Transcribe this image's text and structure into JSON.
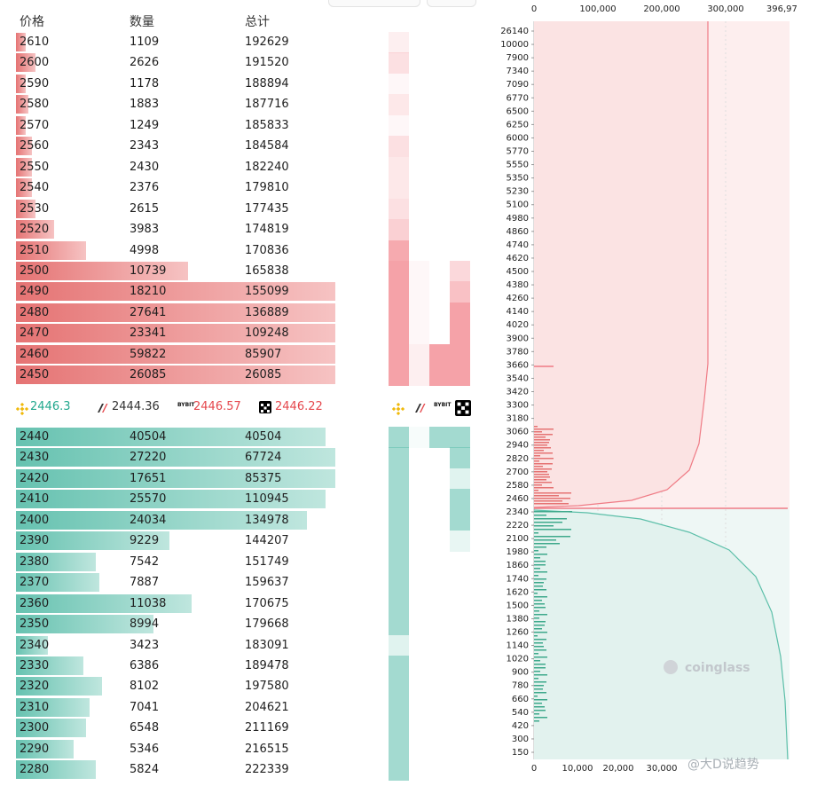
{
  "header": {
    "price": "价格",
    "qty": "数量",
    "total": "总计"
  },
  "colors": {
    "ask": "#e57373",
    "ask_light": "#f6c3c3",
    "bid": "#66c2b0",
    "bid_light": "#bfe6de",
    "ask_price_text": "#e5484d",
    "bid_price_text": "#22a88e"
  },
  "asks": [
    {
      "price": "2610",
      "qty": "1109",
      "total": "192629",
      "depth": 0.03
    },
    {
      "price": "2600",
      "qty": "2626",
      "total": "191520",
      "depth": 0.06
    },
    {
      "price": "2590",
      "qty": "1178",
      "total": "188894",
      "depth": 0.03
    },
    {
      "price": "2580",
      "qty": "1883",
      "total": "187716",
      "depth": 0.04
    },
    {
      "price": "2570",
      "qty": "1249",
      "total": "185833",
      "depth": 0.03
    },
    {
      "price": "2560",
      "qty": "2343",
      "total": "184584",
      "depth": 0.05
    },
    {
      "price": "2550",
      "qty": "2430",
      "total": "182240",
      "depth": 0.05
    },
    {
      "price": "2540",
      "qty": "2376",
      "total": "179810",
      "depth": 0.05
    },
    {
      "price": "2530",
      "qty": "2615",
      "total": "177435",
      "depth": 0.06
    },
    {
      "price": "2520",
      "qty": "3983",
      "total": "174819",
      "depth": 0.12
    },
    {
      "price": "2510",
      "qty": "4998",
      "total": "170836",
      "depth": 0.22
    },
    {
      "price": "2500",
      "qty": "10739",
      "total": "165838",
      "depth": 0.54
    },
    {
      "price": "2490",
      "qty": "18210",
      "total": "155099",
      "depth": 1.0
    },
    {
      "price": "2480",
      "qty": "27641",
      "total": "136889",
      "depth": 1.0
    },
    {
      "price": "2470",
      "qty": "23341",
      "total": "109248",
      "depth": 1.0
    },
    {
      "price": "2460",
      "qty": "59822",
      "total": "85907",
      "depth": 1.0
    },
    {
      "price": "2450",
      "qty": "26085",
      "total": "26085",
      "depth": 1.0
    }
  ],
  "bids": [
    {
      "price": "2440",
      "qty": "40504",
      "total": "40504",
      "depth": 0.97
    },
    {
      "price": "2430",
      "qty": "27220",
      "total": "67724",
      "depth": 1.0
    },
    {
      "price": "2420",
      "qty": "17651",
      "total": "85375",
      "depth": 1.0
    },
    {
      "price": "2410",
      "qty": "25570",
      "total": "110945",
      "depth": 0.97
    },
    {
      "price": "2400",
      "qty": "24034",
      "total": "134978",
      "depth": 0.91
    },
    {
      "price": "2390",
      "qty": "9229",
      "total": "144207",
      "depth": 0.48
    },
    {
      "price": "2380",
      "qty": "7542",
      "total": "151749",
      "depth": 0.25
    },
    {
      "price": "2370",
      "qty": "7887",
      "total": "159637",
      "depth": 0.26
    },
    {
      "price": "2360",
      "qty": "11038",
      "total": "170675",
      "depth": 0.55
    },
    {
      "price": "2350",
      "qty": "8994",
      "total": "179668",
      "depth": 0.43
    },
    {
      "price": "2340",
      "qty": "3423",
      "total": "183091",
      "depth": 0.1
    },
    {
      "price": "2330",
      "qty": "6386",
      "total": "189478",
      "depth": 0.21
    },
    {
      "price": "2320",
      "qty": "8102",
      "total": "197580",
      "depth": 0.27
    },
    {
      "price": "2310",
      "qty": "7041",
      "total": "204621",
      "depth": 0.23
    },
    {
      "price": "2300",
      "qty": "6548",
      "total": "211169",
      "depth": 0.22
    },
    {
      "price": "2290",
      "qty": "5346",
      "total": "216515",
      "depth": 0.18
    },
    {
      "price": "2280",
      "qty": "5824",
      "total": "222339",
      "depth": 0.25
    }
  ],
  "exchange_prices": [
    {
      "name": "binance-icon",
      "price": "2446.3",
      "color": "#22a88e"
    },
    {
      "name": "bybit-stripe-icon",
      "price": "2444.36",
      "color": "#333333"
    },
    {
      "name": "bybit-icon",
      "price": "2446.57",
      "color": "#e5484d"
    },
    {
      "name": "okx-icon",
      "price": "2446.22",
      "color": "#e5484d"
    }
  ],
  "exchange_logo_text": {
    "bybit": "BYBIT"
  },
  "depth_chart": {
    "top_axis": [
      "0",
      "100,000",
      "200,000",
      "300,000",
      "396,97"
    ],
    "bottom_axis": [
      "0",
      "10,000",
      "20,000",
      "30,000"
    ],
    "price_labels": [
      "26140",
      "10000",
      "7900",
      "7340",
      "7090",
      "6770",
      "6500",
      "6250",
      "6000",
      "5770",
      "5550",
      "5350",
      "5230",
      "5100",
      "4980",
      "4860",
      "4740",
      "4620",
      "4500",
      "4380",
      "4260",
      "4140",
      "4020",
      "3900",
      "3780",
      "3660",
      "3540",
      "3420",
      "3300",
      "3180",
      "3060",
      "2940",
      "2820",
      "2700",
      "2580",
      "2460",
      "2340",
      "2220",
      "2100",
      "1980",
      "1860",
      "1740",
      "1620",
      "1500",
      "1380",
      "1260",
      "1140",
      "1020",
      "900",
      "780",
      "660",
      "540",
      "420",
      "300",
      "150"
    ],
    "watermark": "coinglass"
  },
  "footer_watermark": "@大D说趋势"
}
